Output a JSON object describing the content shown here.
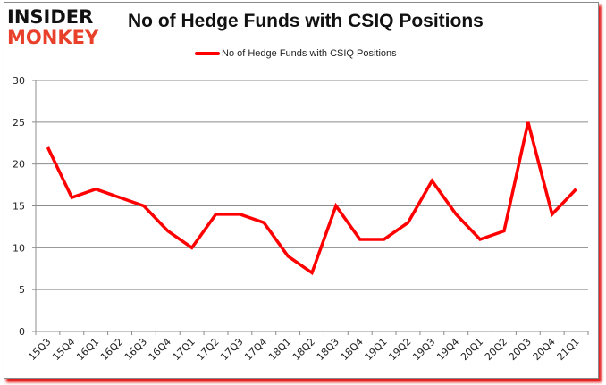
{
  "brand": {
    "line1": "INSIDER",
    "line2": "MONKEY"
  },
  "chart_data": {
    "type": "line",
    "title": "No of Hedge Funds with CSIQ Positions",
    "xlabel": "",
    "ylabel": "",
    "ylim": [
      0,
      30
    ],
    "yticks": [
      0,
      5,
      10,
      15,
      20,
      25,
      30
    ],
    "grid": true,
    "legend": "top-center",
    "categories": [
      "15Q3",
      "15Q4",
      "16Q1",
      "16Q2",
      "16Q3",
      "16Q4",
      "17Q1",
      "17Q2",
      "17Q3",
      "17Q4",
      "18Q1",
      "18Q2",
      "18Q3",
      "18Q4",
      "19Q1",
      "19Q2",
      "19Q3",
      "19Q4",
      "20Q1",
      "20Q2",
      "20Q3",
      "20Q4",
      "21Q1"
    ],
    "series": [
      {
        "name": "No of Hedge Funds with CSIQ Positions",
        "color": "#ff0000",
        "values": [
          22,
          16,
          17,
          16,
          15,
          12,
          10,
          14,
          14,
          13,
          9,
          7,
          15,
          11,
          11,
          13,
          18,
          14,
          11,
          12,
          25,
          14,
          17
        ]
      }
    ]
  }
}
